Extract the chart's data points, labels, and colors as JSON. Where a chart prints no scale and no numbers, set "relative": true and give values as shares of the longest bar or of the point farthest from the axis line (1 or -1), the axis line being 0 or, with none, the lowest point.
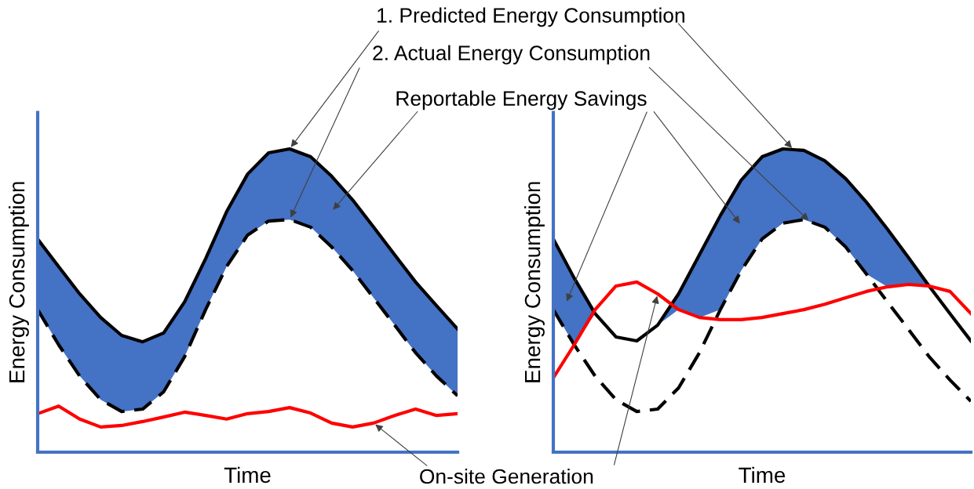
{
  "chart_data": [
    {
      "type": "line",
      "relative": true,
      "xlabel": "Time",
      "ylabel": "Energy Consumption",
      "categories": [
        null,
        null,
        null,
        null,
        null,
        null,
        null,
        null,
        null,
        null,
        null,
        null,
        null,
        null,
        null,
        null,
        null,
        null,
        null,
        null,
        null
      ],
      "series": [
        {
          "type": "line",
          "color": "#000000",
          "line_style": "solid",
          "values": [
            0.703,
            0.612,
            0.522,
            0.444,
            0.385,
            0.364,
            0.393,
            0.496,
            0.638,
            0.793,
            0.917,
            0.987,
            1.0,
            0.974,
            0.91,
            0.832,
            0.742,
            0.651,
            0.561,
            0.483,
            0.406
          ],
          "lower": [
            0.47,
            0.354,
            0.251,
            0.173,
            0.134,
            0.142,
            0.199,
            0.315,
            0.47,
            0.612,
            0.716,
            0.762,
            0.767,
            0.742,
            0.677,
            0.599,
            0.509,
            0.419,
            0.328,
            0.251,
            0.186
          ],
          "upper": [
            0.703,
            0.612,
            0.522,
            0.444,
            0.385,
            0.364,
            0.393,
            0.496,
            0.638,
            0.793,
            0.917,
            0.987,
            1.0,
            0.974,
            0.91,
            0.832,
            0.742,
            0.651,
            0.561,
            0.483,
            0.406
          ]
        },
        {
          "type": "line",
          "color": "#000000",
          "line_style": "dashed",
          "values": [
            0.47,
            0.354,
            0.251,
            0.173,
            0.134,
            0.142,
            0.199,
            0.315,
            0.47,
            0.612,
            0.716,
            0.762,
            0.767,
            0.742,
            0.677,
            0.599,
            0.509,
            0.419,
            0.328,
            0.251,
            0.186
          ]
        },
        {
          "type": "line",
          "color": "#ff0000",
          "line_style": "solid",
          "values": [
            0.127,
            0.152,
            0.109,
            0.083,
            0.088,
            0.101,
            0.116,
            0.132,
            0.121,
            0.109,
            0.127,
            0.134,
            0.147,
            0.129,
            0.096,
            0.083,
            0.096,
            0.121,
            0.142,
            0.121,
            0.127
          ]
        }
      ],
      "annotations": [
        "1. Predicted Energy Consumption",
        "2. Actual Energy Consumption",
        "Reportable Energy Savings",
        "On-site Generation"
      ]
    },
    {
      "type": "line",
      "relative": true,
      "xlabel": "Time",
      "ylabel": "Energy Consumption",
      "categories": [
        null,
        null,
        null,
        null,
        null,
        null,
        null,
        null,
        null,
        null,
        null,
        null,
        null,
        null,
        null,
        null,
        null,
        null,
        null,
        null,
        null
      ],
      "series": [
        {
          "type": "line",
          "color": "#000000",
          "line_style": "solid",
          "values": [
            0.703,
            0.574,
            0.457,
            0.38,
            0.367,
            0.419,
            0.522,
            0.651,
            0.78,
            0.897,
            0.974,
            1.0,
            0.995,
            0.961,
            0.902,
            0.824,
            0.736,
            0.643,
            0.548,
            0.457,
            0.367
          ],
          "lower": [
            0.47,
            0.354,
            0.457,
            0.38,
            0.367,
            0.419,
            0.47,
            0.444,
            0.47,
            0.599,
            0.703,
            0.755,
            0.767,
            0.742,
            0.677,
            0.587,
            0.545,
            0.553,
            0.548,
            0.457,
            0.367
          ],
          "upper": [
            0.703,
            0.574,
            0.457,
            0.38,
            0.367,
            0.419,
            0.522,
            0.651,
            0.78,
            0.897,
            0.974,
            1.0,
            0.995,
            0.961,
            0.902,
            0.824,
            0.736,
            0.643,
            0.548,
            0.457,
            0.367
          ]
        },
        {
          "type": "line",
          "color": "#000000",
          "line_style": "dashed",
          "values": [
            0.47,
            0.354,
            0.251,
            0.173,
            0.134,
            0.142,
            0.212,
            0.328,
            0.47,
            0.599,
            0.703,
            0.755,
            0.767,
            0.742,
            0.677,
            0.587,
            0.496,
            0.406,
            0.315,
            0.238,
            0.168
          ]
        },
        {
          "type": "line",
          "color": "#ff0000",
          "line_style": "solid",
          "values": [
            0.245,
            0.354,
            0.47,
            0.548,
            0.561,
            0.522,
            0.47,
            0.444,
            0.437,
            0.437,
            0.444,
            0.457,
            0.47,
            0.488,
            0.509,
            0.53,
            0.545,
            0.553,
            0.548,
            0.53,
            0.457
          ]
        }
      ]
    }
  ]
}
